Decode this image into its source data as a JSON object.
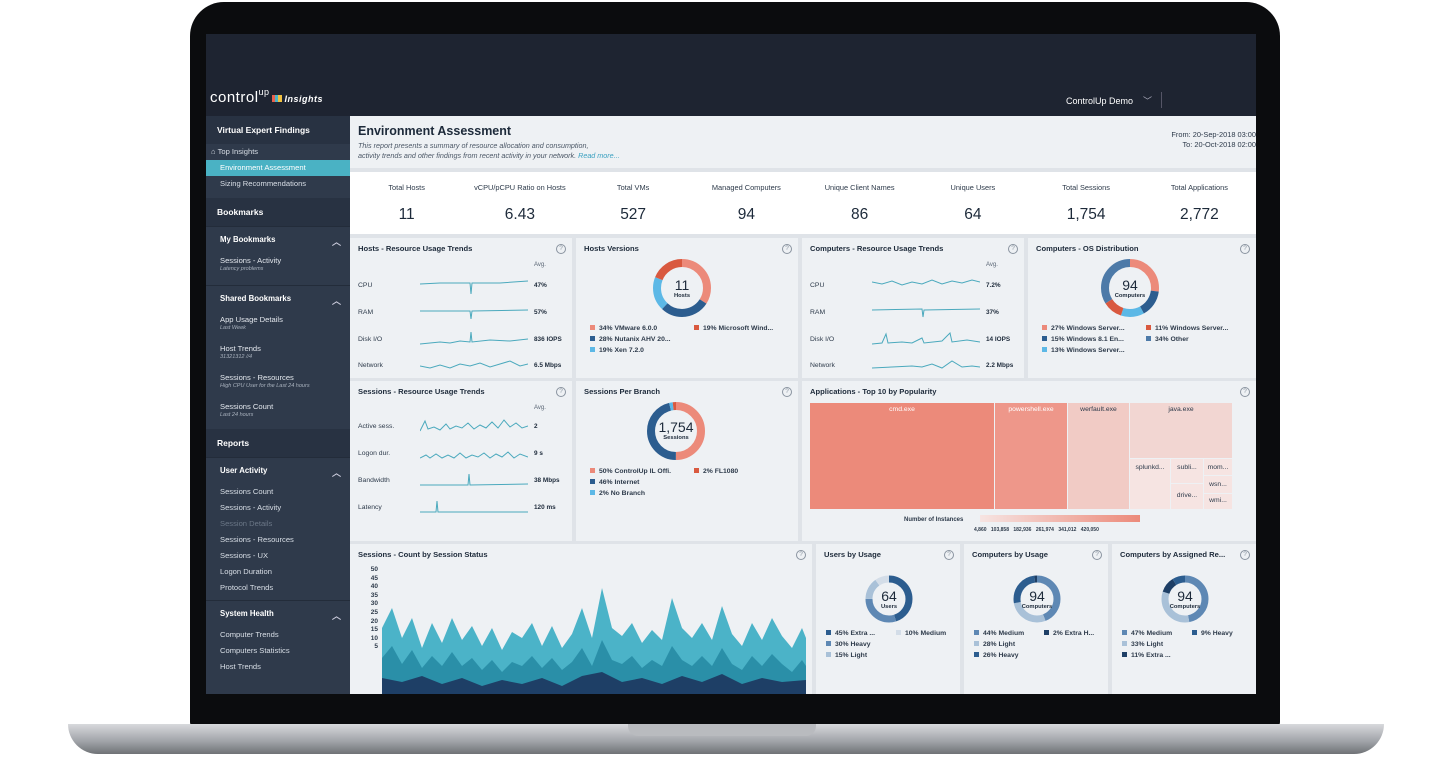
{
  "app": {
    "brand": "control",
    "brand_up": "up",
    "brand_insights": "Insights",
    "user": "ControlUp Demo"
  },
  "sidebar": {
    "virtual_expert": "Virtual Expert Findings",
    "top_insights": "Top Insights",
    "environment_assessment": "Environment Assessment",
    "sizing": "Sizing Recommendations",
    "bookmarks": "Bookmarks",
    "my_bookmarks": "My Bookmarks",
    "my_items": [
      {
        "label": "Sessions - Activity",
        "sub": "Latency problems"
      }
    ],
    "shared_bookmarks": "Shared Bookmarks",
    "shared_items": [
      {
        "label": "App Usage Details",
        "sub": "Last Week"
      },
      {
        "label": "Host Trends",
        "sub": "31321312 //4"
      },
      {
        "label": "Sessions - Resources",
        "sub": "High CPU User for the Last 24 hours"
      },
      {
        "label": "Sessions Count",
        "sub": "Last 24 hours"
      }
    ],
    "reports": "Reports",
    "user_activity": "User Activity",
    "user_activity_items": [
      "Sessions Count",
      "Sessions - Activity",
      "Session Details",
      "Sessions - Resources",
      "Sessions - UX",
      "Logon Duration",
      "Protocol Trends"
    ],
    "system_health": "System Health",
    "system_health_items": [
      "Computer Trends",
      "Computers Statistics",
      "Host Trends"
    ]
  },
  "header": {
    "title": "Environment Assessment",
    "desc1": "This report presents a summary of resource allocation and consumption,",
    "desc2": "activity trends and other findings from recent activity in your network.",
    "read_more": "Read more...",
    "from": "From: 20-Sep-2018 03:00",
    "to": "To: 20-Oct-2018 02:00"
  },
  "stats": [
    {
      "label": "Total Hosts",
      "value": "11"
    },
    {
      "label": "vCPU/pCPU Ratio on Hosts",
      "value": "6.43"
    },
    {
      "label": "Total VMs",
      "value": "527"
    },
    {
      "label": "Managed Computers",
      "value": "94"
    },
    {
      "label": "Unique Client Names",
      "value": "86"
    },
    {
      "label": "Unique Users",
      "value": "64"
    },
    {
      "label": "Total Sessions",
      "value": "1,754"
    },
    {
      "label": "Total Applications",
      "value": "2,772"
    }
  ],
  "help_glyph": "?",
  "avg_label": "Avg.",
  "hosts_trends": {
    "title": "Hosts - Resource Usage Trends",
    "rows": [
      {
        "label": "CPU",
        "value": "47%"
      },
      {
        "label": "RAM",
        "value": "57%"
      },
      {
        "label": "Disk I/O",
        "value": "836 IOPS"
      },
      {
        "label": "Network",
        "value": "6.5 Mbps"
      }
    ]
  },
  "hosts_versions": {
    "title": "Hosts Versions",
    "center_value": "11",
    "center_label": "Hosts",
    "legend": [
      "34% VMware 6.0.0",
      "19% Microsoft Wind...",
      "28% Nutanix AHV 20...",
      "19% Xen 7.2.0"
    ],
    "slices": [
      34,
      28,
      19,
      19
    ],
    "colors": [
      "#ec8a7a",
      "#2c5d8f",
      "#5cb8e6",
      "#d9593f"
    ]
  },
  "computers_trends": {
    "title": "Computers - Resource Usage Trends",
    "rows": [
      {
        "label": "CPU",
        "value": "7.2%"
      },
      {
        "label": "RAM",
        "value": "37%"
      },
      {
        "label": "Disk I/O",
        "value": "14 IOPS"
      },
      {
        "label": "Network",
        "value": "2.2 Mbps"
      }
    ]
  },
  "os_distribution": {
    "title": "Computers - OS Distribution",
    "center_value": "94",
    "center_label": "Computers",
    "legend": [
      "27% Windows Server...",
      "11% Windows Server...",
      "15% Windows 8.1 En...",
      "34% Other",
      "13% Windows Server..."
    ],
    "slices": [
      27,
      15,
      13,
      11,
      34
    ],
    "colors": [
      "#ec8a7a",
      "#2c5d8f",
      "#5cb8e6",
      "#d9593f",
      "#4d7aa8"
    ]
  },
  "sessions_trends": {
    "title": "Sessions - Resource Usage Trends",
    "rows": [
      {
        "label": "Active sess.",
        "value": "2"
      },
      {
        "label": "Logon dur.",
        "value": "9 s"
      },
      {
        "label": "Bandwidth",
        "value": "38 Mbps"
      },
      {
        "label": "Latency",
        "value": "120 ms"
      }
    ]
  },
  "sessions_branch": {
    "title": "Sessions Per Branch",
    "center_value": "1,754",
    "center_label": "Sessions",
    "legend": [
      "50% ControlUp IL Offi.",
      "2% FL1080",
      "46% Internet",
      "2% No Branch"
    ],
    "slices": [
      50,
      46,
      2,
      2
    ],
    "colors": [
      "#ec8a7a",
      "#2c5d8f",
      "#5cb8e6",
      "#d9593f"
    ]
  },
  "applications": {
    "title": "Applications - Top 10 by Popularity",
    "items": [
      "cmd.exe",
      "powershell.exe",
      "werfault.exe",
      "java.exe",
      "splunkd...",
      "subli...",
      "mom...",
      "wsn...",
      "drive...",
      "wmi..."
    ],
    "scale_label": "Number of Instances",
    "ticks": [
      "4,860",
      "103,858",
      "182,936",
      "261,974",
      "341,012",
      "420,050"
    ]
  },
  "sessions_status": {
    "title": "Sessions - Count by Session Status",
    "yticks": [
      "50",
      "45",
      "40",
      "35",
      "30",
      "25",
      "20",
      "15",
      "10",
      "5"
    ]
  },
  "users_usage": {
    "title": "Users by Usage",
    "center_value": "64",
    "center_label": "Users",
    "legend": [
      "45% Extra ...",
      "10% Medium",
      "30% Heavy",
      "15% Light"
    ],
    "slices": [
      45,
      30,
      15,
      10
    ],
    "colors": [
      "#2c5d8f",
      "#5e88b4",
      "#a9c1d8",
      "#d3dde8"
    ]
  },
  "computers_usage": {
    "title": "Computers by Usage",
    "center_value": "94",
    "center_label": "Computers",
    "legend": [
      "44% Medium",
      "2% Extra H...",
      "28% Light",
      "26% Heavy"
    ],
    "slices": [
      44,
      28,
      26,
      2
    ],
    "colors": [
      "#5e88b4",
      "#a9c1d8",
      "#2c5d8f",
      "#1e3f66"
    ]
  },
  "computers_role": {
    "title": "Computers by Assigned Re...",
    "center_value": "94",
    "center_label": "Computers",
    "legend": [
      "47% Medium",
      "9% Heavy",
      "33% Light",
      "11% Extra ..."
    ],
    "slices": [
      47,
      33,
      11,
      9
    ],
    "colors": [
      "#5e88b4",
      "#a9c1d8",
      "#1e3f66",
      "#2c5d8f"
    ]
  }
}
